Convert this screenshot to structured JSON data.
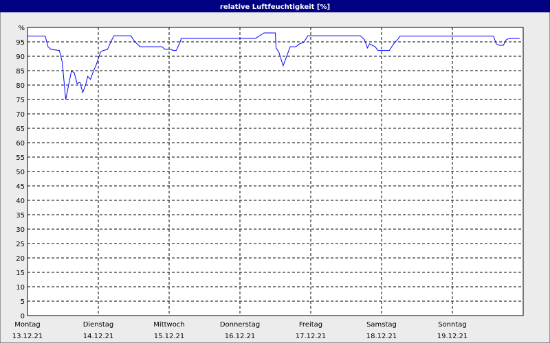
{
  "chart_data": {
    "type": "line",
    "title": "relative Luftfeuchtigkeit [%]",
    "xlim": [
      0,
      7
    ],
    "xticks": [
      {
        "value": 0,
        "label": "Montag",
        "date": "13.12.21"
      },
      {
        "value": 1,
        "label": "Dienstag",
        "date": "14.12.21"
      },
      {
        "value": 2,
        "label": "Mittwoch",
        "date": "15.12.21"
      },
      {
        "value": 3,
        "label": "Donnerstag",
        "date": "16.12.21"
      },
      {
        "value": 4,
        "label": "Freitag",
        "date": "17.12.21"
      },
      {
        "value": 5,
        "label": "Samstag",
        "date": "18.12.21"
      },
      {
        "value": 6,
        "label": "Sonntag",
        "date": "19.12.21"
      }
    ],
    "ylim": [
      0,
      100
    ],
    "yticks": [
      0,
      5,
      10,
      15,
      20,
      25,
      30,
      35,
      40,
      45,
      50,
      55,
      60,
      65,
      70,
      75,
      80,
      85,
      90,
      95,
      {
        "value": 100,
        "label": "%"
      }
    ],
    "grid": true,
    "series": [
      {
        "color": "#0000ff",
        "x": [
          0,
          0.25,
          0.29,
          0.33,
          0.45,
          0.49,
          0.54,
          0.58,
          0.62,
          0.66,
          0.7,
          0.74,
          0.78,
          0.82,
          0.85,
          0.89,
          0.93,
          0.97,
          1.03,
          1.07,
          1.13,
          1.18,
          1.22,
          1.46,
          1.51,
          1.59,
          1.9,
          1.94,
          2.02,
          2.06,
          2.1,
          2.16,
          2.17,
          3.22,
          3.34,
          3.5,
          3.51,
          3.55,
          3.61,
          3.71,
          3.79,
          3.84,
          3.9,
          3.96,
          4.7,
          4.76,
          4.8,
          4.83,
          4.91,
          4.95,
          5.11,
          5.17,
          5.24,
          5.26,
          6.58,
          6.62,
          6.66,
          6.72,
          6.76,
          6.8,
          6.95
        ],
        "values": [
          97,
          97,
          93.3,
          92.4,
          92,
          88,
          75,
          80,
          84.8,
          84.3,
          80.5,
          81,
          77.4,
          80,
          83,
          82,
          84.8,
          87,
          91.4,
          92,
          92.4,
          95.2,
          97.1,
          97.1,
          95.2,
          93.3,
          93.3,
          92.4,
          92.4,
          92,
          92,
          95.2,
          96.2,
          96.2,
          98.1,
          98.1,
          92.9,
          91.4,
          86.7,
          93.3,
          93.3,
          94.3,
          94.8,
          97.1,
          97.1,
          95.7,
          92.9,
          94.3,
          93.3,
          92,
          92,
          94.3,
          96.2,
          97,
          97,
          94.3,
          93.8,
          93.8,
          95.7,
          96.2,
          96.2
        ]
      }
    ]
  }
}
